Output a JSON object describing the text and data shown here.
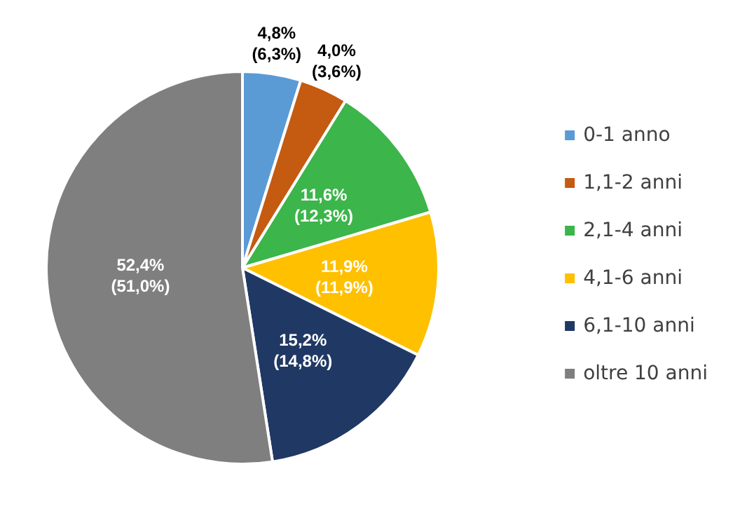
{
  "chart_data": {
    "type": "pie",
    "categories": [
      "0-1 anno",
      "1,1-2 anni",
      "2,1-4 anni",
      "4,1-6 anni",
      "6,1-10 anni",
      "oltre 10 anni"
    ],
    "values": [
      4.8,
      4.0,
      11.6,
      11.9,
      15.2,
      52.4
    ],
    "value_labels": [
      "4,8%\n(6,3%)",
      "4,0%\n(3,6%)",
      "11,6%\n(12,3%)",
      "11,9%\n(11,9%)",
      "15,2%\n(14,8%)",
      "52,4%\n(51,0%)"
    ],
    "colors": [
      "#5b9bd5",
      "#c55a11",
      "#3cb54a",
      "#ffc000",
      "#203864",
      "#7f7f7f"
    ],
    "legend": "right"
  }
}
